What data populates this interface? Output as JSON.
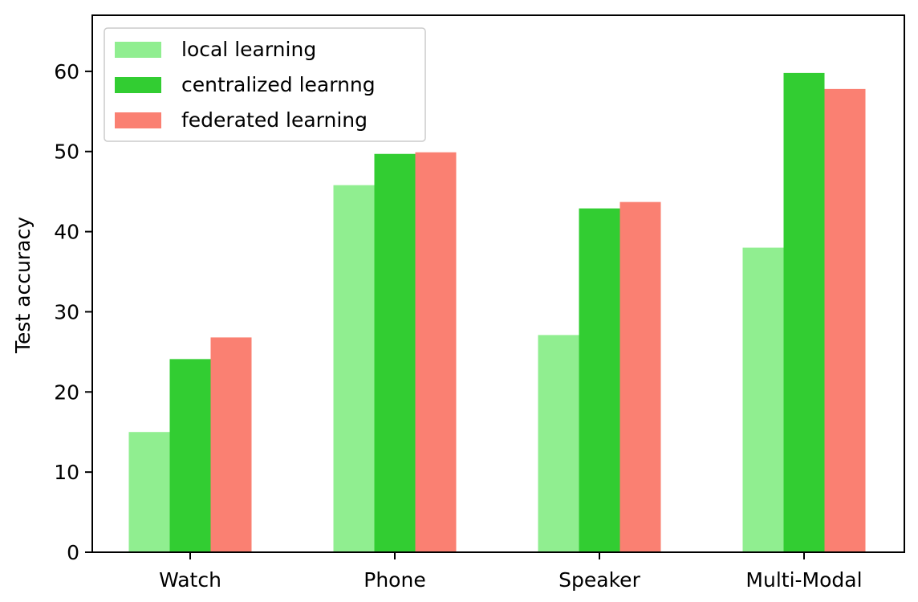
{
  "chart_data": {
    "type": "bar",
    "title": "",
    "xlabel": "",
    "ylabel": "Test accuracy",
    "ylim": [
      0,
      67
    ],
    "yticks": [
      0,
      10,
      20,
      30,
      40,
      50,
      60
    ],
    "categories": [
      "Watch",
      "Phone",
      "Speaker",
      "Multi-Modal"
    ],
    "series": [
      {
        "name": "local learning",
        "color": "#90ee90",
        "values": [
          15.0,
          45.8,
          27.1,
          38.0
        ]
      },
      {
        "name": "centralized learnng",
        "color": "#32cd32",
        "values": [
          24.1,
          49.7,
          42.9,
          59.8
        ]
      },
      {
        "name": "federated learning",
        "color": "#fa8072",
        "values": [
          26.8,
          49.9,
          43.7,
          57.8
        ]
      }
    ],
    "legend": {
      "placement": "top-left"
    },
    "grid": false
  }
}
